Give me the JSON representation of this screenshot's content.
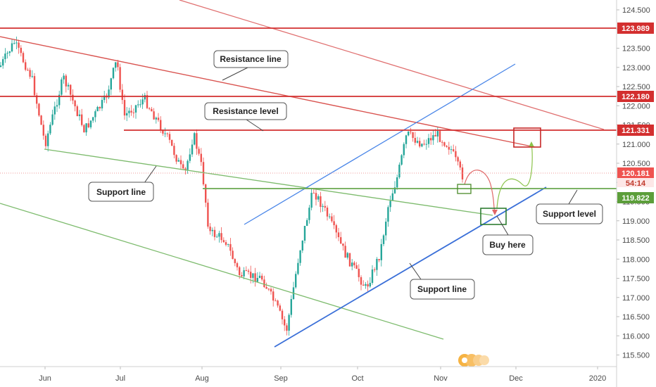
{
  "chart_data": {
    "type": "line",
    "series_kind": "candlestick-price",
    "y_axis": {
      "ticks": [
        "124.500",
        "124.000",
        "123.500",
        "123.000",
        "122.500",
        "122.000",
        "121.500",
        "121.000",
        "120.500",
        "120.000",
        "119.500",
        "119.000",
        "118.500",
        "118.000",
        "117.500",
        "117.000",
        "116.500",
        "116.000",
        "115.500"
      ],
      "ylim": [
        115.3,
        124.8
      ]
    },
    "x_axis": {
      "ticks": [
        "Jun",
        "Jul",
        "Aug",
        "Sep",
        "Oct",
        "Nov",
        "Dec",
        "2020"
      ]
    },
    "horizontal_levels": [
      {
        "value": 123.989,
        "label": "123.989",
        "color": "#d32f2f"
      },
      {
        "value": 122.18,
        "label": "122.180",
        "color": "#d32f2f"
      },
      {
        "value": 121.331,
        "label": "121.331",
        "color": "#d32f2f"
      },
      {
        "value": 119.822,
        "label": "119.822",
        "color": "#4caf50"
      }
    ],
    "last_price": {
      "value": 120.181,
      "label": "120.181",
      "timer": "54:14",
      "color": "#e53935"
    },
    "annotations": [
      {
        "text": "Resistance line"
      },
      {
        "text": "Resistance level"
      },
      {
        "text": "Support line"
      },
      {
        "text": "Support line"
      },
      {
        "text": "Support level"
      },
      {
        "text": "Buy here"
      }
    ],
    "colors": {
      "up": "#26a69a",
      "down": "#ef5350",
      "resistance": "#d32f2f",
      "support_green": "#6aa84f",
      "support_blue": "#3a6fd8"
    }
  },
  "labels": {
    "resistance_line": "Resistance line",
    "resistance_level": "Resistance level",
    "support_line_left": "Support line",
    "support_line_right": "Support line",
    "support_level": "Support level",
    "buy_here": "Buy here"
  },
  "price_tags": {
    "l1": "123.989",
    "l2": "122.180",
    "l3": "121.331",
    "last": "120.181",
    "timer": "54:14",
    "l4": "119.822"
  }
}
